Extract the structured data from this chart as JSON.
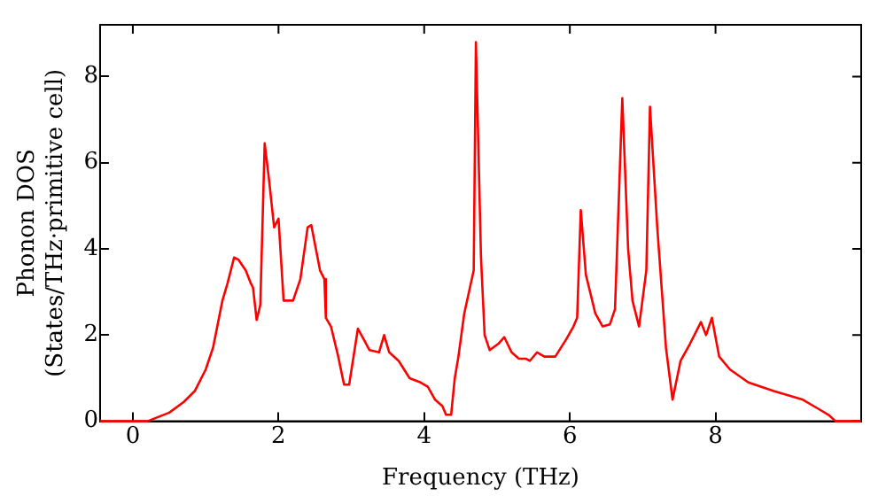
{
  "chart_data": {
    "type": "line",
    "xlabel": "Frequency (THz)",
    "ylabel": [
      "Phonon DOS",
      "(States/THz·primitive cell)"
    ],
    "xlim": [
      -0.45,
      10
    ],
    "xticks": [
      0,
      2,
      4,
      6,
      8
    ],
    "ylim": [
      0,
      9.2
    ],
    "yticks": [
      0,
      2,
      4,
      6,
      8
    ],
    "grid": false,
    "legend": false,
    "marker": "none",
    "line_style": "solid",
    "series": [
      {
        "color": "#ff0000",
        "x": [
          -0.45,
          0.2,
          0.5,
          0.7,
          0.85,
          1.0,
          1.1,
          1.23,
          1.3,
          1.39,
          1.45,
          1.55,
          1.62,
          1.65,
          1.7,
          1.75,
          1.81,
          1.87,
          1.94,
          2.0,
          2.07,
          2.2,
          2.3,
          2.4,
          2.45,
          2.57,
          2.63,
          2.65,
          2.72,
          2.82,
          2.9,
          2.97,
          3.09,
          3.17,
          3.25,
          3.38,
          3.45,
          3.52,
          3.65,
          3.8,
          3.95,
          4.05,
          4.15,
          4.25,
          4.3,
          4.37,
          4.42,
          4.47,
          4.55,
          4.68,
          4.71,
          4.78,
          4.83,
          4.9,
          5.02,
          5.1,
          5.2,
          5.3,
          5.4,
          5.45,
          5.55,
          5.65,
          5.8,
          5.95,
          6.05,
          6.1,
          6.15,
          6.22,
          6.35,
          6.45,
          6.55,
          6.62,
          6.72,
          6.8,
          6.86,
          6.95,
          7.05,
          7.1,
          7.2,
          7.32,
          7.41,
          7.52,
          7.65,
          7.8,
          7.87,
          7.95,
          8.05,
          8.2,
          8.45,
          8.8,
          9.2,
          9.4,
          9.55,
          9.65,
          10.0
        ],
        "values": [
          0,
          0,
          0.2,
          0.45,
          0.7,
          1.2,
          1.7,
          2.8,
          3.2,
          3.8,
          3.75,
          3.5,
          3.2,
          3.1,
          2.35,
          2.7,
          6.45,
          5.6,
          4.5,
          4.7,
          2.8,
          2.8,
          3.3,
          4.5,
          4.55,
          3.5,
          3.3,
          2.4,
          2.2,
          1.5,
          0.85,
          0.85,
          2.15,
          1.9,
          1.65,
          1.6,
          2.0,
          1.6,
          1.4,
          1.0,
          0.9,
          0.8,
          0.5,
          0.35,
          0.15,
          0.15,
          1.0,
          1.5,
          2.5,
          3.5,
          8.8,
          3.8,
          2.0,
          1.65,
          1.8,
          1.95,
          1.6,
          1.45,
          1.45,
          1.4,
          1.6,
          1.5,
          1.5,
          1.9,
          2.2,
          2.4,
          4.9,
          3.4,
          2.5,
          2.2,
          2.25,
          2.6,
          7.5,
          4.0,
          2.8,
          2.2,
          3.5,
          7.3,
          4.5,
          1.7,
          0.5,
          1.4,
          1.8,
          2.3,
          2.0,
          2.4,
          1.5,
          1.2,
          0.9,
          0.7,
          0.5,
          0.3,
          0.15,
          0,
          0
        ]
      }
    ]
  }
}
